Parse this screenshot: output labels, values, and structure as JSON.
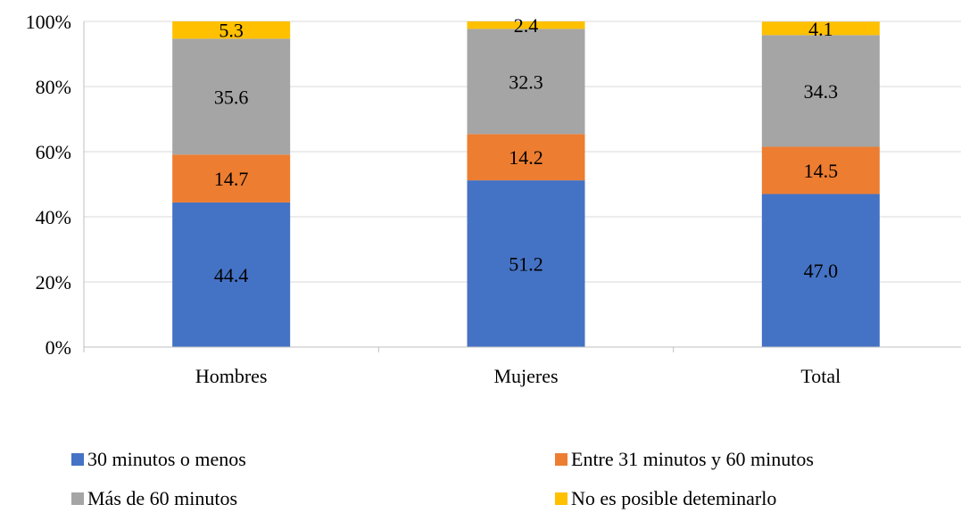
{
  "chart_data": {
    "type": "bar",
    "stacked": true,
    "percent_stacked": true,
    "categories": [
      "Hombres",
      "Mujeres",
      "Total"
    ],
    "series": [
      {
        "name": "30 minutos o menos",
        "values": [
          44.4,
          51.2,
          47.0
        ],
        "labels": [
          "44.4",
          "51.2",
          "47.0"
        ],
        "color": "#4472C4"
      },
      {
        "name": "Entre 31 minutos y 60 minutos",
        "values": [
          14.7,
          14.2,
          14.5
        ],
        "labels": [
          "14.7",
          "14.2",
          "14.5"
        ],
        "color": "#ED7D31"
      },
      {
        "name": "Más de 60 minutos",
        "values": [
          35.6,
          32.3,
          34.3
        ],
        "labels": [
          "35.6",
          "32.3",
          "34.3"
        ],
        "color": "#A5A5A5"
      },
      {
        "name": "No es posible deteminarlo",
        "values": [
          5.3,
          2.4,
          4.1
        ],
        "labels": [
          "5.3",
          "2.4",
          "4.1"
        ],
        "color": "#FFC000"
      }
    ],
    "y_ticks": [
      "0%",
      "20%",
      "40%",
      "60%",
      "80%",
      "100%"
    ],
    "ylim": [
      0,
      100
    ],
    "grid": true,
    "legend_position": "bottom",
    "gridline_color": "#D9D9D9",
    "axis_color": "#BFBFBF"
  }
}
